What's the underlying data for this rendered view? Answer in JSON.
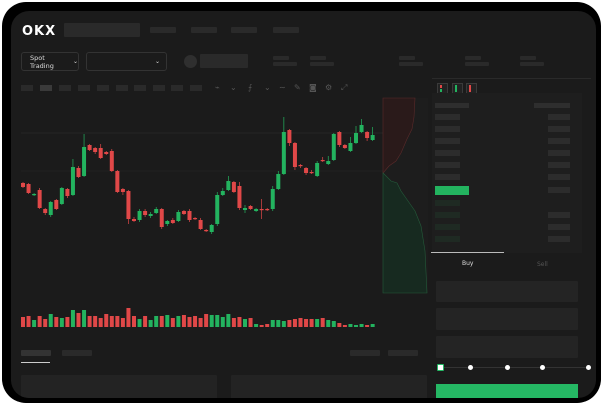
{
  "header": {
    "logo": "OKX",
    "trading_mode_label": "Spot Trading",
    "pair_select_value": ""
  },
  "order_form": {
    "tabs": [
      "Buy",
      "Sell"
    ],
    "active_tab": "Buy",
    "slider_stops": 5,
    "slider_value_fraction": 0
  },
  "colors": {
    "up": "#23b35f",
    "down": "#e04848",
    "accent": "#25b864",
    "background": "#1b1b1b"
  },
  "icons": [
    "chevron-down-icon",
    "indicator-icon",
    "draw-icon",
    "camera-icon",
    "settings-icon",
    "fullscreen-icon",
    "orderbook-both-icon",
    "orderbook-bids-icon",
    "orderbook-asks-icon"
  ],
  "chart_data": {
    "type": "candlestick",
    "title": "",
    "candles_ohlc": [
      [
        69,
        70,
        64,
        65
      ],
      [
        68,
        69,
        58,
        59
      ],
      [
        57,
        59,
        56,
        58
      ],
      [
        62,
        64,
        43,
        44
      ],
      [
        43,
        44,
        37,
        39
      ],
      [
        37,
        51,
        35,
        50
      ],
      [
        52,
        53,
        42,
        43
      ],
      [
        48,
        65,
        47,
        64
      ],
      [
        63,
        64,
        54,
        56
      ],
      [
        57,
        93,
        56,
        85
      ],
      [
        84,
        86,
        74,
        75
      ],
      [
        76,
        118,
        75,
        105
      ],
      [
        107,
        108,
        101,
        102
      ],
      [
        104,
        105,
        98,
        100
      ],
      [
        104,
        108,
        93,
        94
      ],
      [
        100,
        101,
        97,
        98
      ],
      [
        101,
        103,
        80,
        81
      ],
      [
        81,
        82,
        59,
        60
      ],
      [
        63,
        64,
        57,
        60
      ],
      [
        61,
        62,
        28,
        33
      ],
      [
        33,
        35,
        30,
        31
      ],
      [
        32,
        43,
        30,
        41
      ],
      [
        41,
        43,
        35,
        37
      ],
      [
        36,
        40,
        34,
        38
      ],
      [
        39,
        45,
        38,
        43
      ],
      [
        43,
        44,
        23,
        25
      ],
      [
        28,
        32,
        26,
        31
      ],
      [
        32,
        34,
        28,
        29
      ],
      [
        31,
        42,
        30,
        40
      ],
      [
        41,
        42,
        37,
        38
      ],
      [
        41,
        43,
        30,
        32
      ],
      [
        34,
        35,
        32,
        33
      ],
      [
        32,
        34,
        22,
        23
      ],
      [
        22,
        23,
        20,
        21
      ],
      [
        20,
        28,
        18,
        27
      ],
      [
        28,
        60,
        26,
        57
      ],
      [
        57,
        64,
        56,
        61
      ],
      [
        62,
        76,
        61,
        71
      ],
      [
        70,
        71,
        59,
        60
      ],
      [
        66,
        70,
        42,
        44
      ],
      [
        42,
        47,
        39,
        44
      ],
      [
        46,
        47,
        42,
        43
      ],
      [
        41,
        44,
        40,
        43
      ],
      [
        43,
        53,
        33,
        42
      ],
      [
        43,
        44,
        41,
        42
      ],
      [
        43,
        66,
        41,
        63
      ],
      [
        63,
        81,
        62,
        78
      ],
      [
        78,
        135,
        77,
        120
      ],
      [
        122,
        123,
        106,
        109
      ],
      [
        109,
        110,
        82,
        85
      ],
      [
        87,
        88,
        84,
        86
      ],
      [
        84,
        85,
        77,
        79
      ],
      [
        80,
        82,
        78,
        79
      ],
      [
        76,
        91,
        75,
        89
      ],
      [
        92,
        95,
        90,
        91
      ],
      [
        88,
        96,
        87,
        91
      ],
      [
        92,
        119,
        91,
        118
      ],
      [
        120,
        121,
        105,
        107
      ],
      [
        107,
        108,
        103,
        104
      ],
      [
        101,
        115,
        100,
        109
      ],
      [
        109,
        126,
        108,
        119
      ],
      [
        120,
        133,
        119,
        127
      ],
      [
        120,
        121,
        111,
        114
      ],
      [
        112,
        125,
        111,
        117
      ]
    ],
    "volume": [
      10,
      11,
      7,
      11,
      8,
      13,
      10,
      9,
      10,
      17,
      14,
      17,
      11,
      11,
      9,
      13,
      11,
      11,
      9,
      19,
      11,
      8,
      11,
      7,
      11,
      11,
      12,
      9,
      11,
      12,
      10,
      11,
      9,
      13,
      12,
      12,
      10,
      13,
      9,
      10,
      8,
      9,
      3,
      2,
      3,
      7,
      7,
      6,
      7,
      8,
      9,
      8,
      8,
      8,
      9,
      7,
      6,
      4,
      2,
      3,
      2,
      3,
      2,
      3
    ],
    "grid": true,
    "depth": {
      "asks_color": "#e04848",
      "bids_color": "#23b35f"
    }
  }
}
